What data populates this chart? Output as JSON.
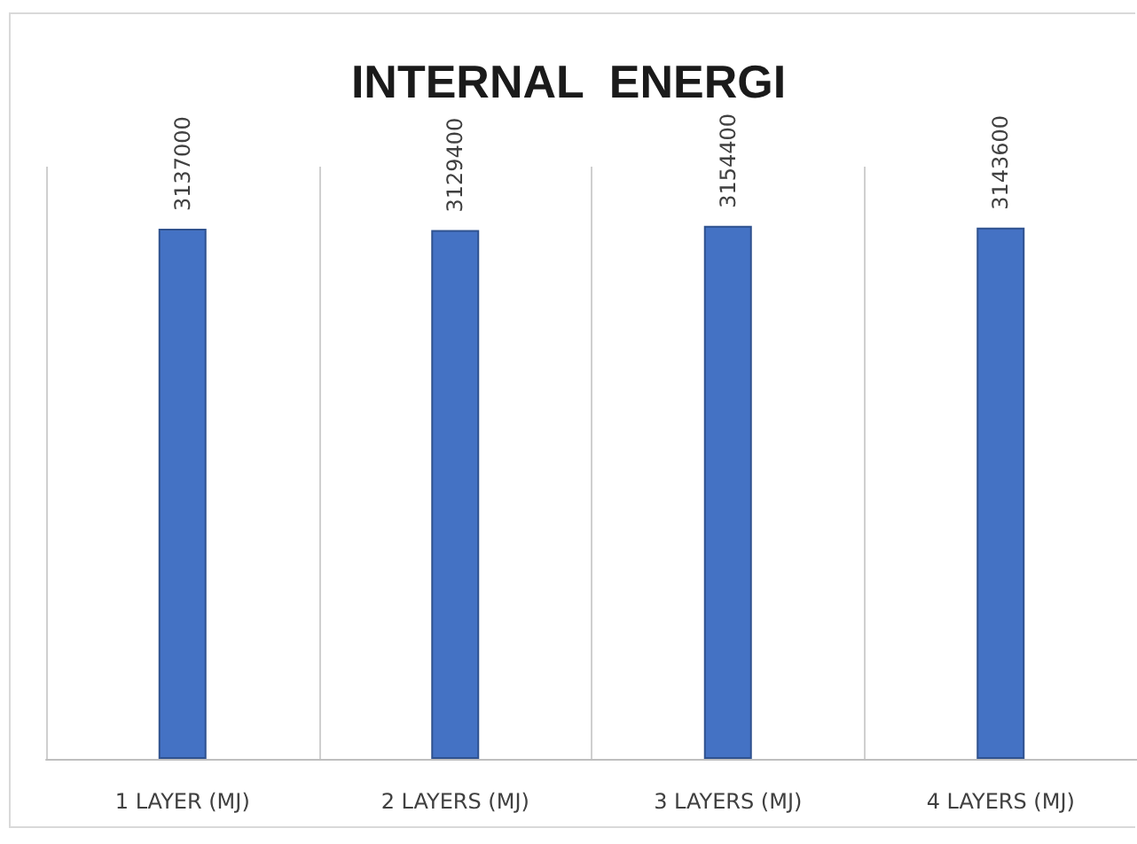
{
  "chart_data": {
    "type": "bar",
    "title": "INTERNAL  ENERGI",
    "categories": [
      "1 LAYER (MJ)",
      "2 LAYERS (MJ)",
      "3 LAYERS (MJ)",
      "4 LAYERS (MJ)"
    ],
    "values": [
      3137000,
      3129400,
      3154400,
      3143600
    ],
    "color": "#4472c4",
    "data_labels": true,
    "grid": "x",
    "tick_labels": "x"
  }
}
